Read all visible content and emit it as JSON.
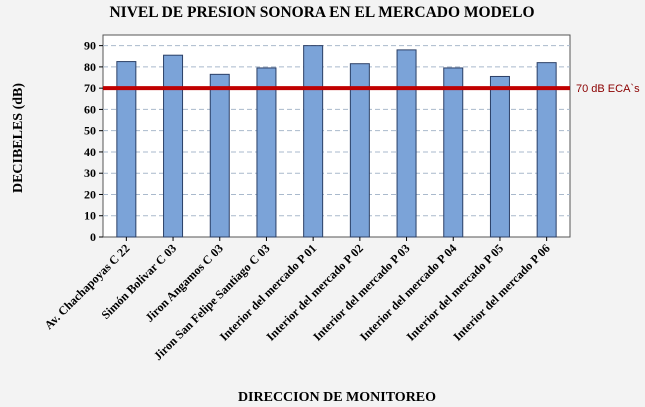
{
  "chart_data": {
    "type": "bar",
    "title": "NIVEL DE PRESION SONORA EN EL MERCADO MODELO",
    "xlabel": "DIRECCION DE MONITOREO",
    "ylabel": "DECIBELES (dB)",
    "ylim": [
      0,
      95
    ],
    "yticks": [
      0,
      10,
      20,
      30,
      40,
      50,
      60,
      70,
      80,
      90
    ],
    "grid": "horizontal dashed",
    "categories": [
      "Av. Chachapoyas C 22",
      "Simón Bolivar C 03",
      "Jiron Angamos C 03",
      "Jiron San Felipe Santiago C 03",
      "Interior del mercado P 01",
      "Interior del mercado P 02",
      "Interior del mercado P 03",
      "Interior del mercado P 04",
      "Interior del mercado P 05",
      "Interior del mercado P 06"
    ],
    "values": [
      82.5,
      85.5,
      76.5,
      79.5,
      90.0,
      81.5,
      88.0,
      79.5,
      75.5,
      82.0
    ],
    "reference_line": {
      "value": 70,
      "label": "70 dB ECA`s",
      "color": "#c00000"
    },
    "colors": {
      "bar": "#7ba3d8",
      "bar_stroke": "#2b3f66",
      "grid": "#a9b9cc",
      "plot_bg": "#ffffff"
    }
  }
}
